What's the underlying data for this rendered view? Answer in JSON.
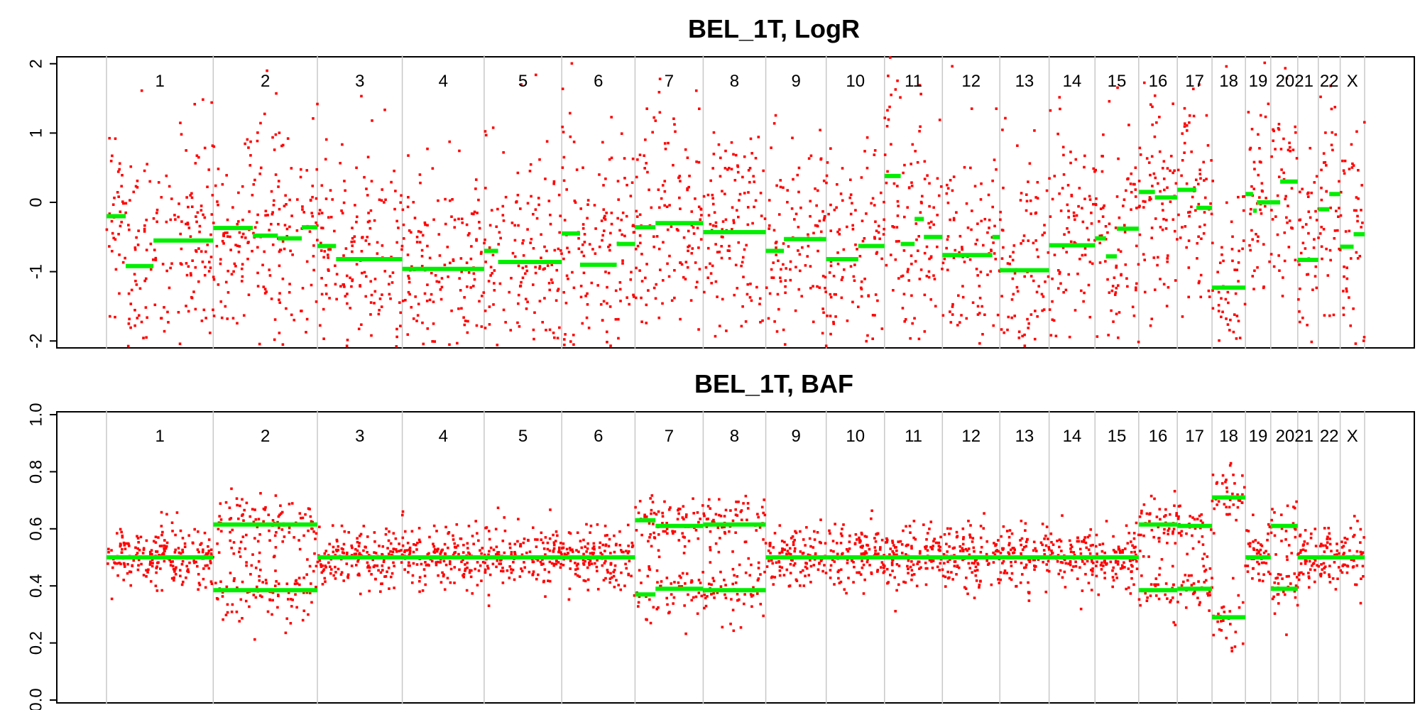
{
  "chart_data": [
    {
      "type": "scatter",
      "title": "BEL_1T, LogR",
      "xlabel": "",
      "ylabel": "",
      "ylim": [
        -2.1,
        2.1
      ],
      "y_ticks": [
        -2,
        -1,
        0,
        1,
        2
      ],
      "y_tick_labels": [
        "-2",
        "-1",
        "0",
        "1",
        "2"
      ],
      "chromosomes": [
        "1",
        "2",
        "3",
        "4",
        "5",
        "6",
        "7",
        "8",
        "9",
        "10",
        "11",
        "12",
        "13",
        "14",
        "15",
        "16",
        "17",
        "18",
        "19",
        "20",
        "21",
        "22",
        "X"
      ],
      "chromosome_labels": [
        "1",
        "2",
        "3",
        "4",
        "5",
        "6",
        "7",
        "8",
        "9",
        "10",
        "11",
        "12",
        "13",
        "14",
        "15",
        "16",
        "17",
        "18",
        "19",
        "20",
        "21",
        "22",
        "X"
      ],
      "chromosome_label_text": [
        "1",
        "2",
        "3",
        "4",
        "5",
        "6",
        "7",
        "8",
        "9",
        "10",
        "11",
        "12",
        "13",
        "14",
        "15",
        "16",
        "17",
        "18",
        "19",
        "2021",
        "",
        "22",
        "X"
      ],
      "chromosome_sizes": [
        249,
        243,
        198,
        191,
        181,
        171,
        159,
        146,
        141,
        136,
        135,
        134,
        115,
        107,
        102,
        90,
        81,
        78,
        59,
        63,
        48,
        51,
        57
      ],
      "point_color": "#ff0000",
      "segment_color": "#00ee00",
      "series": [
        {
          "name": "",
          "kind": "points",
          "values": "noisy probe values around segment means, sd ~0.8"
        },
        {
          "name": "",
          "kind": "segments"
        }
      ],
      "segments": [
        {
          "chrom": "1",
          "start": 0.0,
          "end": 0.18,
          "value": -0.2
        },
        {
          "chrom": "1",
          "start": 0.18,
          "end": 0.44,
          "value": -0.92
        },
        {
          "chrom": "1",
          "start": 0.44,
          "end": 1.0,
          "value": -0.55
        },
        {
          "chrom": "2",
          "start": 0.0,
          "end": 0.38,
          "value": -0.37
        },
        {
          "chrom": "2",
          "start": 0.38,
          "end": 0.62,
          "value": -0.48
        },
        {
          "chrom": "2",
          "start": 0.62,
          "end": 0.85,
          "value": -0.52
        },
        {
          "chrom": "2",
          "start": 0.85,
          "end": 1.0,
          "value": -0.36
        },
        {
          "chrom": "3",
          "start": 0.0,
          "end": 0.22,
          "value": -0.63
        },
        {
          "chrom": "3",
          "start": 0.22,
          "end": 1.0,
          "value": -0.82
        },
        {
          "chrom": "4",
          "start": 0.0,
          "end": 1.0,
          "value": -0.96
        },
        {
          "chrom": "5",
          "start": 0.0,
          "end": 0.18,
          "value": -0.7
        },
        {
          "chrom": "5",
          "start": 0.18,
          "end": 1.0,
          "value": -0.86
        },
        {
          "chrom": "6",
          "start": 0.0,
          "end": 0.25,
          "value": -0.45
        },
        {
          "chrom": "6",
          "start": 0.25,
          "end": 0.75,
          "value": -0.9
        },
        {
          "chrom": "6",
          "start": 0.75,
          "end": 1.0,
          "value": -0.6
        },
        {
          "chrom": "7",
          "start": 0.0,
          "end": 0.3,
          "value": -0.36
        },
        {
          "chrom": "7",
          "start": 0.3,
          "end": 1.0,
          "value": -0.3
        },
        {
          "chrom": "8",
          "start": 0.0,
          "end": 1.0,
          "value": -0.43
        },
        {
          "chrom": "9",
          "start": 0.0,
          "end": 0.3,
          "value": -0.7
        },
        {
          "chrom": "9",
          "start": 0.3,
          "end": 1.0,
          "value": -0.53
        },
        {
          "chrom": "10",
          "start": 0.0,
          "end": 0.55,
          "value": -0.82
        },
        {
          "chrom": "10",
          "start": 0.55,
          "end": 1.0,
          "value": -0.63
        },
        {
          "chrom": "11",
          "start": 0.0,
          "end": 0.28,
          "value": 0.38
        },
        {
          "chrom": "11",
          "start": 0.28,
          "end": 0.52,
          "value": -0.6
        },
        {
          "chrom": "11",
          "start": 0.52,
          "end": 0.68,
          "value": -0.24
        },
        {
          "chrom": "11",
          "start": 0.68,
          "end": 1.0,
          "value": -0.5
        },
        {
          "chrom": "12",
          "start": 0.0,
          "end": 0.87,
          "value": -0.76
        },
        {
          "chrom": "12",
          "start": 0.87,
          "end": 1.0,
          "value": -0.5
        },
        {
          "chrom": "13",
          "start": 0.0,
          "end": 1.0,
          "value": -0.98
        },
        {
          "chrom": "14",
          "start": 0.0,
          "end": 1.0,
          "value": -0.62
        },
        {
          "chrom": "15",
          "start": 0.0,
          "end": 0.25,
          "value": -0.52
        },
        {
          "chrom": "15",
          "start": 0.25,
          "end": 0.5,
          "value": -0.78
        },
        {
          "chrom": "15",
          "start": 0.5,
          "end": 1.0,
          "value": -0.38
        },
        {
          "chrom": "16",
          "start": 0.0,
          "end": 0.42,
          "value": 0.15
        },
        {
          "chrom": "16",
          "start": 0.42,
          "end": 1.0,
          "value": 0.07
        },
        {
          "chrom": "17",
          "start": 0.0,
          "end": 0.55,
          "value": 0.18
        },
        {
          "chrom": "17",
          "start": 0.55,
          "end": 1.0,
          "value": -0.08
        },
        {
          "chrom": "18",
          "start": 0.0,
          "end": 1.0,
          "value": -1.23
        },
        {
          "chrom": "19",
          "start": 0.0,
          "end": 0.3,
          "value": 0.12
        },
        {
          "chrom": "19",
          "start": 0.3,
          "end": 0.45,
          "value": -0.12
        },
        {
          "chrom": "19",
          "start": 0.45,
          "end": 1.0,
          "value": 0.0
        },
        {
          "chrom": "20",
          "start": 0.0,
          "end": 0.35,
          "value": 0.0
        },
        {
          "chrom": "20",
          "start": 0.35,
          "end": 1.0,
          "value": 0.3
        },
        {
          "chrom": "21",
          "start": 0.0,
          "end": 1.0,
          "value": -0.83
        },
        {
          "chrom": "22",
          "start": 0.0,
          "end": 0.5,
          "value": -0.1
        },
        {
          "chrom": "22",
          "start": 0.5,
          "end": 1.0,
          "value": 0.12
        },
        {
          "chrom": "X",
          "start": 0.0,
          "end": 0.55,
          "value": -0.64
        },
        {
          "chrom": "X",
          "start": 0.55,
          "end": 1.0,
          "value": -0.46
        }
      ],
      "grid": false,
      "legend": "none"
    },
    {
      "type": "scatter",
      "title": "BEL_1T, BAF",
      "xlabel": "",
      "ylabel": "",
      "ylim": [
        0.0,
        1.0
      ],
      "y_ticks": [
        0.0,
        0.2,
        0.4,
        0.6,
        0.8,
        1.0
      ],
      "y_tick_labels": [
        "0.0",
        "0.2",
        "0.4",
        "0.6",
        "0.8",
        "1.0"
      ],
      "chromosome_label_text": [
        "1",
        "2",
        "3",
        "4",
        "5",
        "6",
        "7",
        "8",
        "9",
        "10",
        "11",
        "12",
        "13",
        "14",
        "15",
        "16",
        "17",
        "18",
        "19",
        "2021",
        "",
        "22",
        "X"
      ],
      "point_color": "#ff0000",
      "segment_color": "#00ee00",
      "baf_segments": [
        {
          "chrom": "1",
          "start": 0.0,
          "end": 1.0,
          "value": 0.5
        },
        {
          "chrom": "2",
          "start": 0.0,
          "end": 1.0,
          "value": 0.615,
          "mirror": true
        },
        {
          "chrom": "3",
          "start": 0.0,
          "end": 1.0,
          "value": 0.5
        },
        {
          "chrom": "4",
          "start": 0.0,
          "end": 1.0,
          "value": 0.5
        },
        {
          "chrom": "5",
          "start": 0.0,
          "end": 1.0,
          "value": 0.5
        },
        {
          "chrom": "6",
          "start": 0.0,
          "end": 1.0,
          "value": 0.5
        },
        {
          "chrom": "7",
          "start": 0.0,
          "end": 0.3,
          "value": 0.63,
          "mirror": true
        },
        {
          "chrom": "7",
          "start": 0.3,
          "end": 1.0,
          "value": 0.61,
          "mirror": true
        },
        {
          "chrom": "8",
          "start": 0.0,
          "end": 1.0,
          "value": 0.615,
          "mirror": true
        },
        {
          "chrom": "9",
          "start": 0.0,
          "end": 1.0,
          "value": 0.5
        },
        {
          "chrom": "10",
          "start": 0.0,
          "end": 1.0,
          "value": 0.5
        },
        {
          "chrom": "11",
          "start": 0.0,
          "end": 1.0,
          "value": 0.5
        },
        {
          "chrom": "12",
          "start": 0.0,
          "end": 1.0,
          "value": 0.5
        },
        {
          "chrom": "13",
          "start": 0.0,
          "end": 1.0,
          "value": 0.5
        },
        {
          "chrom": "14",
          "start": 0.0,
          "end": 1.0,
          "value": 0.5
        },
        {
          "chrom": "15",
          "start": 0.0,
          "end": 1.0,
          "value": 0.5
        },
        {
          "chrom": "16",
          "start": 0.0,
          "end": 1.0,
          "value": 0.615,
          "mirror": true
        },
        {
          "chrom": "17",
          "start": 0.0,
          "end": 1.0,
          "value": 0.61,
          "mirror": true
        },
        {
          "chrom": "18",
          "start": 0.0,
          "end": 1.0,
          "value": 0.71,
          "mirror": true
        },
        {
          "chrom": "19",
          "start": 0.0,
          "end": 1.0,
          "value": 0.5
        },
        {
          "chrom": "20",
          "start": 0.0,
          "end": 1.0,
          "value": 0.61,
          "mirror": true
        },
        {
          "chrom": "21",
          "start": 0.0,
          "end": 1.0,
          "value": 0.5
        },
        {
          "chrom": "22",
          "start": 0.0,
          "end": 1.0,
          "value": 0.5
        },
        {
          "chrom": "X",
          "start": 0.0,
          "end": 1.0,
          "value": 0.5
        }
      ],
      "grid": false,
      "legend": "none"
    }
  ]
}
